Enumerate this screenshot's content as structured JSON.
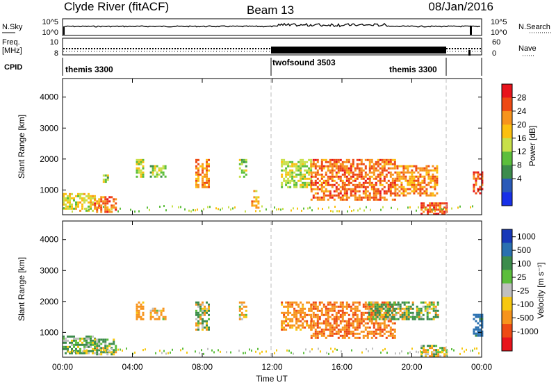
{
  "header": {
    "station": "Clyde River (fitACF)",
    "beam": "Beam 13",
    "date": "08/Jan/2016"
  },
  "noise_panel": {
    "left_label": "N.Sky",
    "left_ticks": [
      "10^5",
      "10^0"
    ],
    "right_label": "N.Search",
    "right_ticks": [
      "10^5",
      "10^0"
    ]
  },
  "freq_panel": {
    "left_label_top": "Freq.",
    "left_label_bottom": "[MHz]",
    "left_ticks": [
      "10",
      "8"
    ],
    "right_label": "Nave",
    "right_ticks": [
      "60",
      "0"
    ]
  },
  "cpid_panel": {
    "label": "CPID",
    "modes": [
      {
        "name": "themis 3300",
        "start_hour": 0,
        "end_hour": 12
      },
      {
        "name": "twofsound 3503",
        "start_hour": 12,
        "end_hour": 21.9
      },
      {
        "name": "themis 3300",
        "start_hour": 21.9,
        "end_hour": 24
      }
    ]
  },
  "power_panel": {
    "ylabel": "Slant Range [km]",
    "colorbar_label": "Power [dB]",
    "colorbar_ticks": [
      "28",
      "24",
      "20",
      "16",
      "12",
      "8",
      "4"
    ],
    "colorbar_colors": [
      "#e8141c",
      "#ee4a14",
      "#f7941d",
      "#fcc010",
      "#c8e04a",
      "#5cbe3c",
      "#3c8c4c",
      "#2a5ab8",
      "#1830e8"
    ]
  },
  "velocity_panel": {
    "ylabel": "Slant Range [km]",
    "colorbar_label": "Velocity [m s⁻¹]",
    "colorbar_ticks": [
      "1000",
      "500",
      "100",
      "25",
      "-25",
      "-100",
      "-500",
      "-1000"
    ],
    "colorbar_colors": [
      "#1838b8",
      "#2a70b0",
      "#3c8c4c",
      "#5cbe3c",
      "#c0c0c0",
      "#f7c810",
      "#f7941d",
      "#ee4a14",
      "#e8141c"
    ]
  },
  "x_axis": {
    "label": "Time UT",
    "ticks": [
      "00:00",
      "04:00",
      "08:00",
      "12:00",
      "16:00",
      "20:00",
      "00:00"
    ]
  },
  "chart_data": [
    {
      "type": "heatmap",
      "title": "",
      "xlabel": "Time UT",
      "ylabel": "Slant Range [km]",
      "colorbar": "Power [dB]",
      "xlim_hours": [
        0,
        24
      ],
      "ylim": [
        200,
        4600
      ],
      "yticks": [
        1000,
        2000,
        3000,
        4000
      ],
      "clim": [
        0,
        32
      ],
      "echo_regions": [
        {
          "t_start": 0.0,
          "t_end": 1.9,
          "r_low": 300,
          "r_high": 900,
          "power": 18
        },
        {
          "t_start": 1.8,
          "t_end": 3.0,
          "r_low": 300,
          "r_high": 800,
          "power": 26
        },
        {
          "t_start": 2.3,
          "t_end": 2.6,
          "r_low": 1200,
          "r_high": 1500,
          "power": 14
        },
        {
          "t_start": 4.2,
          "t_end": 4.6,
          "r_low": 1400,
          "r_high": 2000,
          "power": 16
        },
        {
          "t_start": 5.0,
          "t_end": 5.9,
          "r_low": 1400,
          "r_high": 1800,
          "power": 14
        },
        {
          "t_start": 7.6,
          "t_end": 8.4,
          "r_low": 1100,
          "r_high": 2000,
          "power": 24
        },
        {
          "t_start": 10.1,
          "t_end": 10.5,
          "r_low": 1400,
          "r_high": 2000,
          "power": 14
        },
        {
          "t_start": 10.8,
          "t_end": 11.2,
          "r_low": 400,
          "r_high": 1000,
          "power": 22
        },
        {
          "t_start": 12.5,
          "t_end": 14.2,
          "r_low": 1100,
          "r_high": 2000,
          "power": 16
        },
        {
          "t_start": 14.2,
          "t_end": 19.0,
          "r_low": 700,
          "r_high": 2000,
          "power": 26
        },
        {
          "t_start": 19.0,
          "t_end": 21.5,
          "r_low": 800,
          "r_high": 1800,
          "power": 24
        },
        {
          "t_start": 20.5,
          "t_end": 22.0,
          "r_low": 200,
          "r_high": 600,
          "power": 28
        },
        {
          "t_start": 23.5,
          "t_end": 24.0,
          "r_low": 900,
          "r_high": 1600,
          "power": 28
        }
      ]
    },
    {
      "type": "heatmap",
      "title": "",
      "xlabel": "Time UT",
      "ylabel": "Slant Range [km]",
      "colorbar": "Velocity [m s⁻¹]",
      "xlim_hours": [
        0,
        24
      ],
      "ylim": [
        200,
        4600
      ],
      "yticks": [
        1000,
        2000,
        3000,
        4000
      ],
      "color_levels": [
        -1000,
        -500,
        -100,
        -25,
        25,
        100,
        500,
        1000
      ],
      "echo_regions": [
        {
          "t_start": 0.0,
          "t_end": 1.9,
          "r_low": 300,
          "r_high": 900,
          "velocity": 150
        },
        {
          "t_start": 1.8,
          "t_end": 3.0,
          "r_low": 300,
          "r_high": 800,
          "velocity": 120
        },
        {
          "t_start": 4.2,
          "t_end": 4.6,
          "r_low": 1400,
          "r_high": 2000,
          "velocity": -300
        },
        {
          "t_start": 5.0,
          "t_end": 5.9,
          "r_low": 1400,
          "r_high": 1800,
          "velocity": -150
        },
        {
          "t_start": 7.6,
          "t_end": 8.4,
          "r_low": 1100,
          "r_high": 2000,
          "velocity": 60
        },
        {
          "t_start": 10.1,
          "t_end": 10.5,
          "r_low": 1400,
          "r_high": 2000,
          "velocity": -200
        },
        {
          "t_start": 12.5,
          "t_end": 14.2,
          "r_low": 1100,
          "r_high": 2000,
          "velocity": -300
        },
        {
          "t_start": 14.2,
          "t_end": 19.0,
          "r_low": 800,
          "r_high": 2000,
          "velocity": -450
        },
        {
          "t_start": 17.5,
          "t_end": 21.5,
          "r_low": 1400,
          "r_high": 2000,
          "velocity": 80
        },
        {
          "t_start": 20.5,
          "t_end": 22.0,
          "r_low": 200,
          "r_high": 600,
          "velocity": 0
        },
        {
          "t_start": 23.5,
          "t_end": 24.0,
          "r_low": 900,
          "r_high": 1600,
          "velocity": 700
        }
      ]
    }
  ]
}
